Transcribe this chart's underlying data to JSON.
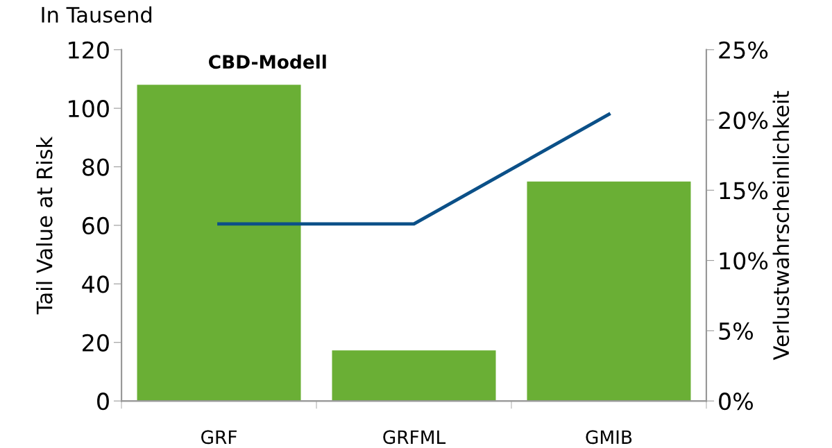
{
  "chart_data": {
    "type": "bar",
    "title": "CBD-Modell",
    "ylabel": "Tail Value at Risk",
    "y2label": "Verlustwahrscheinlichkeit",
    "annotations": [
      "In Tausend"
    ],
    "categories": [
      "GRF",
      "GRFML",
      "GMIB"
    ],
    "series": [
      {
        "color": "#6aaf35",
        "values": [
          108,
          17.3,
          75
        ]
      },
      {
        "type": "line",
        "axis": "y2",
        "color": "#0b5088",
        "values": [
          12.6,
          12.6,
          20.4
        ]
      }
    ],
    "ylim": [
      0,
      120
    ],
    "yticks": [
      0,
      20,
      40,
      60,
      80,
      100,
      120
    ],
    "y2lim": [
      0,
      25
    ],
    "y2ticks": [
      {
        "value": 0,
        "label": "0%"
      },
      {
        "value": 5,
        "label": "5%"
      },
      {
        "value": 10,
        "label": "10%"
      },
      {
        "value": 15,
        "label": "15%"
      },
      {
        "value": 20,
        "label": "20%"
      },
      {
        "value": 25,
        "label": "25%"
      }
    ],
    "grid": false,
    "legend": false
  }
}
